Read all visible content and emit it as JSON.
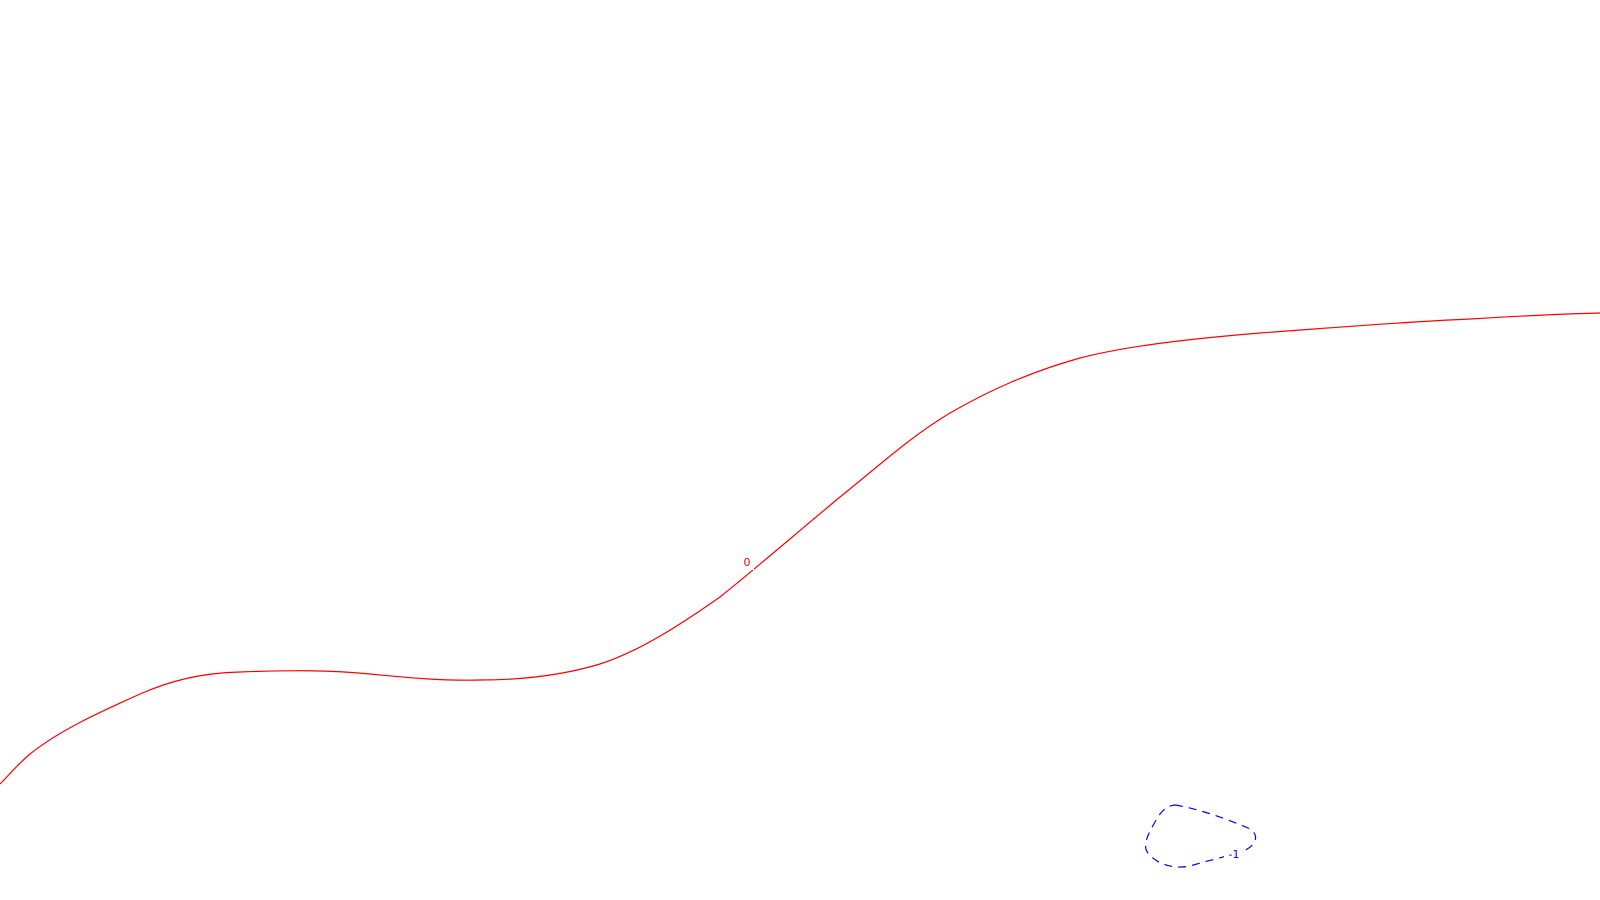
{
  "chart_data": {
    "type": "contour",
    "title": "",
    "xlabel": "",
    "ylabel": "",
    "grid": false,
    "legend": "none",
    "levels": [
      {
        "label": "0",
        "color": "#ff0000",
        "linestyle": "solid",
        "shape": "open-curve"
      },
      {
        "label": "-1",
        "color": "#0000ff",
        "linestyle": "dashed",
        "shape": "closed-loop"
      }
    ]
  }
}
